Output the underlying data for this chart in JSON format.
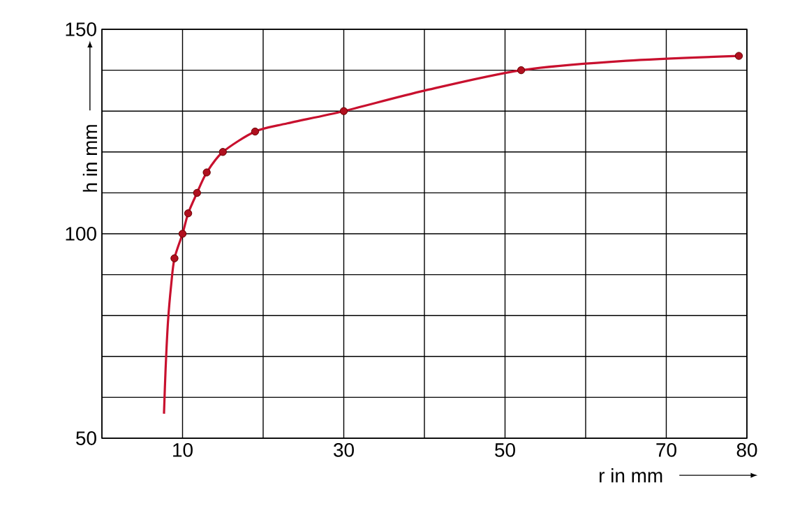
{
  "chart_data": {
    "type": "line",
    "xlabel": "r in mm",
    "ylabel": "h in mm",
    "xlim": [
      0,
      80
    ],
    "ylim": [
      50,
      150
    ],
    "xticks": [
      {
        "value": 0,
        "label": null
      },
      10,
      {
        "value": 20,
        "label": null
      },
      30,
      {
        "value": 40,
        "label": null
      },
      50,
      {
        "value": 60,
        "label": null
      },
      70,
      80
    ],
    "yticks": [
      50,
      {
        "value": 60,
        "label": null
      },
      {
        "value": 70,
        "label": null
      },
      {
        "value": 80,
        "label": null
      },
      {
        "value": 90,
        "label": null
      },
      100,
      {
        "value": 110,
        "label": null
      },
      {
        "value": 120,
        "label": null
      },
      {
        "value": 130,
        "label": null
      },
      {
        "value": 140,
        "label": null
      },
      150
    ],
    "grid": true,
    "series": [
      {
        "color": "#c8102e",
        "marker": "none",
        "x": [
          7.7,
          7.9,
          8.2,
          8.6,
          9,
          10,
          10.7,
          11.8,
          13,
          15,
          19,
          23,
          30,
          40,
          52,
          65,
          79
        ],
        "values": [
          56,
          67,
          78.6,
          87.7,
          94,
          100,
          105,
          110,
          115,
          120,
          125,
          127,
          130,
          135,
          140,
          142.3,
          143.5
        ]
      },
      {
        "type": "scatter",
        "color": "#b0101f",
        "marker": "circle",
        "x": [
          9,
          10,
          10.7,
          11.8,
          13,
          15,
          19,
          30,
          52,
          79
        ],
        "values": [
          94,
          100,
          105,
          110,
          115,
          120,
          125,
          130,
          140,
          143.5
        ]
      }
    ]
  }
}
